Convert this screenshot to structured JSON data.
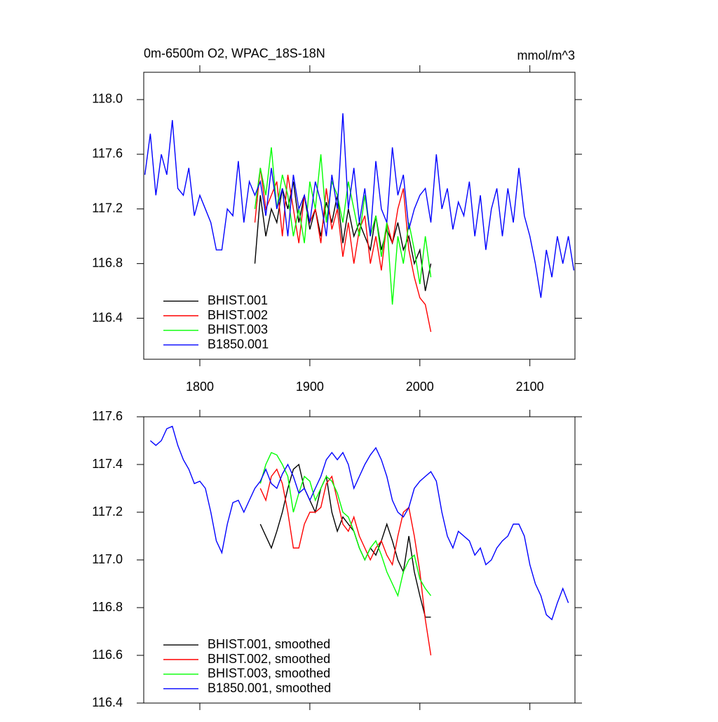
{
  "chart_data": [
    {
      "type": "line",
      "title": "0m-6500m O2, WPAC_18S-18N",
      "units": "mmol/m^3",
      "xlim": [
        1749,
        2141
      ],
      "ylim": [
        116.1,
        118.2
      ],
      "xticks": [
        1800,
        1900,
        2000,
        2100
      ],
      "show_xtick_labels": true,
      "yticks": [
        116.4,
        116.8,
        117.2,
        117.6,
        {
          "value": 118.0,
          "label": "118.0"
        }
      ],
      "legend": "lower left",
      "series": [
        {
          "name": "BHIST.001",
          "color": "#000000",
          "x": [
            1850,
            1855,
            1860,
            1865,
            1870,
            1875,
            1880,
            1885,
            1890,
            1895,
            1900,
            1905,
            1910,
            1915,
            1920,
            1925,
            1930,
            1935,
            1940,
            1945,
            1950,
            1955,
            1960,
            1965,
            1970,
            1975,
            1980,
            1985,
            1990,
            1995,
            2000,
            2005,
            2010
          ],
          "values": [
            116.8,
            117.3,
            117.0,
            117.2,
            117.1,
            117.35,
            117.2,
            117.4,
            117.1,
            117.3,
            117.05,
            117.2,
            117.0,
            117.25,
            117.1,
            117.3,
            116.95,
            117.2,
            117.0,
            117.1,
            117.0,
            116.9,
            117.15,
            116.9,
            117.05,
            116.95,
            117.1,
            116.9,
            117.0,
            116.8,
            116.9,
            116.6,
            116.8
          ]
        },
        {
          "name": "BHIST.002",
          "color": "#ff0000",
          "x": [
            1850,
            1855,
            1860,
            1865,
            1870,
            1875,
            1880,
            1885,
            1890,
            1895,
            1900,
            1905,
            1910,
            1915,
            1920,
            1925,
            1930,
            1935,
            1940,
            1945,
            1950,
            1955,
            1960,
            1965,
            1970,
            1975,
            1980,
            1985,
            1990,
            1995,
            2000,
            2005,
            2010
          ],
          "values": [
            117.1,
            117.5,
            117.2,
            117.3,
            117.4,
            117.0,
            117.45,
            117.2,
            116.95,
            117.3,
            117.1,
            117.2,
            116.95,
            117.35,
            117.05,
            117.2,
            116.85,
            117.1,
            116.8,
            117.05,
            117.15,
            116.8,
            117.0,
            116.75,
            117.1,
            116.95,
            117.2,
            117.35,
            116.9,
            116.7,
            116.55,
            116.5,
            116.3
          ]
        },
        {
          "name": "BHIST.003",
          "color": "#00ff00",
          "x": [
            1850,
            1855,
            1860,
            1865,
            1870,
            1875,
            1880,
            1885,
            1890,
            1895,
            1900,
            1905,
            1910,
            1915,
            1920,
            1925,
            1930,
            1935,
            1940,
            1945,
            1950,
            1955,
            1960,
            1965,
            1970,
            1975,
            1980,
            1985,
            1990,
            1995,
            2000,
            2005,
            2010
          ],
          "values": [
            117.2,
            117.5,
            117.3,
            117.65,
            117.2,
            117.45,
            117.3,
            117.0,
            117.2,
            116.95,
            117.4,
            117.2,
            117.6,
            117.1,
            117.4,
            117.3,
            117.1,
            117.4,
            117.2,
            117.0,
            117.3,
            117.0,
            117.15,
            116.85,
            117.1,
            116.5,
            117.0,
            116.8,
            117.1,
            116.9,
            116.65,
            117.0,
            116.7
          ]
        },
        {
          "name": "B1850.001",
          "color": "#0000ff",
          "x": [
            1750,
            1755,
            1760,
            1765,
            1770,
            1775,
            1780,
            1785,
            1790,
            1795,
            1800,
            1805,
            1810,
            1815,
            1820,
            1825,
            1830,
            1835,
            1840,
            1845,
            1850,
            1855,
            1860,
            1865,
            1870,
            1875,
            1880,
            1885,
            1890,
            1895,
            1900,
            1905,
            1910,
            1915,
            1920,
            1925,
            1930,
            1935,
            1940,
            1945,
            1950,
            1955,
            1960,
            1965,
            1970,
            1975,
            1980,
            1985,
            1990,
            1995,
            2000,
            2005,
            2010,
            2015,
            2020,
            2025,
            2030,
            2035,
            2040,
            2045,
            2050,
            2055,
            2060,
            2065,
            2070,
            2075,
            2080,
            2085,
            2090,
            2095,
            2100,
            2105,
            2110,
            2115,
            2120,
            2125,
            2130,
            2135,
            2140
          ],
          "values": [
            117.45,
            117.75,
            117.3,
            117.6,
            117.45,
            117.85,
            117.35,
            117.3,
            117.5,
            117.15,
            117.3,
            117.2,
            117.1,
            116.9,
            116.9,
            117.2,
            117.15,
            117.55,
            117.1,
            117.4,
            117.3,
            117.4,
            117.15,
            117.5,
            117.2,
            117.35,
            117.0,
            117.45,
            117.2,
            117.3,
            117.1,
            117.4,
            117.25,
            117.0,
            117.45,
            117.2,
            117.9,
            117.2,
            117.5,
            117.1,
            117.35,
            117.0,
            117.55,
            117.2,
            117.1,
            117.65,
            117.3,
            117.45,
            117.05,
            117.2,
            117.3,
            117.35,
            117.1,
            117.6,
            117.2,
            117.35,
            117.05,
            117.25,
            117.15,
            117.4,
            117.0,
            117.3,
            116.9,
            117.2,
            117.35,
            117.0,
            117.35,
            117.1,
            117.5,
            117.15,
            117.0,
            116.8,
            116.55,
            116.9,
            116.7,
            117.0,
            116.8,
            117.0,
            116.75
          ]
        }
      ]
    },
    {
      "type": "line",
      "xlim": [
        1749,
        2141
      ],
      "ylim": [
        116.4,
        117.6
      ],
      "xticks": [
        1800,
        1900,
        2000,
        2100
      ],
      "show_xtick_labels": false,
      "yticks": [
        116.4,
        116.6,
        116.8,
        {
          "value": 117.0,
          "label": "117.0"
        },
        117.2,
        117.4,
        117.6
      ],
      "legend": "lower left",
      "series": [
        {
          "name": "BHIST.001, smoothed",
          "color": "#000000",
          "x": [
            1855,
            1860,
            1865,
            1870,
            1875,
            1880,
            1885,
            1890,
            1895,
            1900,
            1905,
            1910,
            1915,
            1920,
            1925,
            1930,
            1935,
            1940,
            1945,
            1950,
            1955,
            1960,
            1965,
            1970,
            1975,
            1980,
            1985,
            1990,
            1995,
            2000,
            2005,
            2010
          ],
          "values": [
            117.15,
            117.1,
            117.05,
            117.12,
            117.2,
            117.3,
            117.38,
            117.4,
            117.3,
            117.25,
            117.2,
            117.3,
            117.35,
            117.2,
            117.12,
            117.18,
            117.15,
            117.12,
            117.05,
            117.0,
            117.05,
            117.02,
            117.08,
            117.15,
            117.08,
            117.0,
            116.95,
            117.1,
            116.95,
            116.85,
            116.76,
            116.76
          ]
        },
        {
          "name": "BHIST.002, smoothed",
          "color": "#ff0000",
          "x": [
            1855,
            1860,
            1865,
            1870,
            1875,
            1880,
            1885,
            1890,
            1895,
            1900,
            1905,
            1910,
            1915,
            1920,
            1925,
            1930,
            1935,
            1940,
            1945,
            1950,
            1955,
            1960,
            1965,
            1970,
            1975,
            1980,
            1985,
            1990,
            1995,
            2000,
            2005,
            2010
          ],
          "values": [
            117.3,
            117.25,
            117.35,
            117.38,
            117.32,
            117.2,
            117.05,
            117.05,
            117.15,
            117.2,
            117.2,
            117.22,
            117.32,
            117.35,
            117.25,
            117.15,
            117.12,
            117.18,
            117.1,
            117.05,
            117.0,
            117.05,
            117.08,
            117.02,
            116.98,
            117.1,
            117.2,
            117.22,
            117.1,
            116.95,
            116.75,
            116.6
          ]
        },
        {
          "name": "BHIST.003, smoothed",
          "color": "#00ff00",
          "x": [
            1855,
            1860,
            1865,
            1870,
            1875,
            1880,
            1885,
            1890,
            1895,
            1900,
            1905,
            1910,
            1915,
            1920,
            1925,
            1930,
            1935,
            1940,
            1945,
            1950,
            1955,
            1960,
            1965,
            1970,
            1975,
            1980,
            1985,
            1990,
            1995,
            2000,
            2005,
            2010
          ],
          "values": [
            117.32,
            117.4,
            117.45,
            117.44,
            117.4,
            117.35,
            117.2,
            117.28,
            117.35,
            117.33,
            117.25,
            117.3,
            117.35,
            117.33,
            117.28,
            117.2,
            117.18,
            117.12,
            117.05,
            117.0,
            117.05,
            117.08,
            117.02,
            116.95,
            116.9,
            116.85,
            116.95,
            117.0,
            117.02,
            116.92,
            116.88,
            116.85
          ]
        },
        {
          "name": "B1850.001, smoothed",
          "color": "#0000ff",
          "x": [
            1755,
            1760,
            1765,
            1770,
            1775,
            1780,
            1785,
            1790,
            1795,
            1800,
            1805,
            1810,
            1815,
            1820,
            1825,
            1830,
            1835,
            1840,
            1845,
            1850,
            1855,
            1860,
            1865,
            1870,
            1875,
            1880,
            1885,
            1890,
            1895,
            1900,
            1905,
            1910,
            1915,
            1920,
            1925,
            1930,
            1935,
            1940,
            1945,
            1950,
            1955,
            1960,
            1965,
            1970,
            1975,
            1980,
            1985,
            1990,
            1995,
            2000,
            2005,
            2010,
            2015,
            2020,
            2025,
            2030,
            2035,
            2040,
            2045,
            2050,
            2055,
            2060,
            2065,
            2070,
            2075,
            2080,
            2085,
            2090,
            2095,
            2100,
            2105,
            2110,
            2115,
            2120,
            2125,
            2130,
            2135
          ],
          "values": [
            117.5,
            117.48,
            117.5,
            117.55,
            117.56,
            117.48,
            117.42,
            117.38,
            117.32,
            117.33,
            117.3,
            117.2,
            117.08,
            117.03,
            117.15,
            117.24,
            117.25,
            117.2,
            117.25,
            117.3,
            117.33,
            117.38,
            117.32,
            117.3,
            117.36,
            117.4,
            117.35,
            117.28,
            117.3,
            117.25,
            117.3,
            117.35,
            117.42,
            117.45,
            117.42,
            117.45,
            117.4,
            117.3,
            117.35,
            117.4,
            117.44,
            117.47,
            117.42,
            117.35,
            117.25,
            117.2,
            117.18,
            117.22,
            117.3,
            117.33,
            117.35,
            117.37,
            117.33,
            117.2,
            117.1,
            117.05,
            117.12,
            117.1,
            117.08,
            117.02,
            117.05,
            116.98,
            117.0,
            117.05,
            117.08,
            117.1,
            117.15,
            117.15,
            117.1,
            116.98,
            116.9,
            116.85,
            116.77,
            116.75,
            116.82,
            116.88,
            116.82
          ]
        }
      ]
    }
  ]
}
